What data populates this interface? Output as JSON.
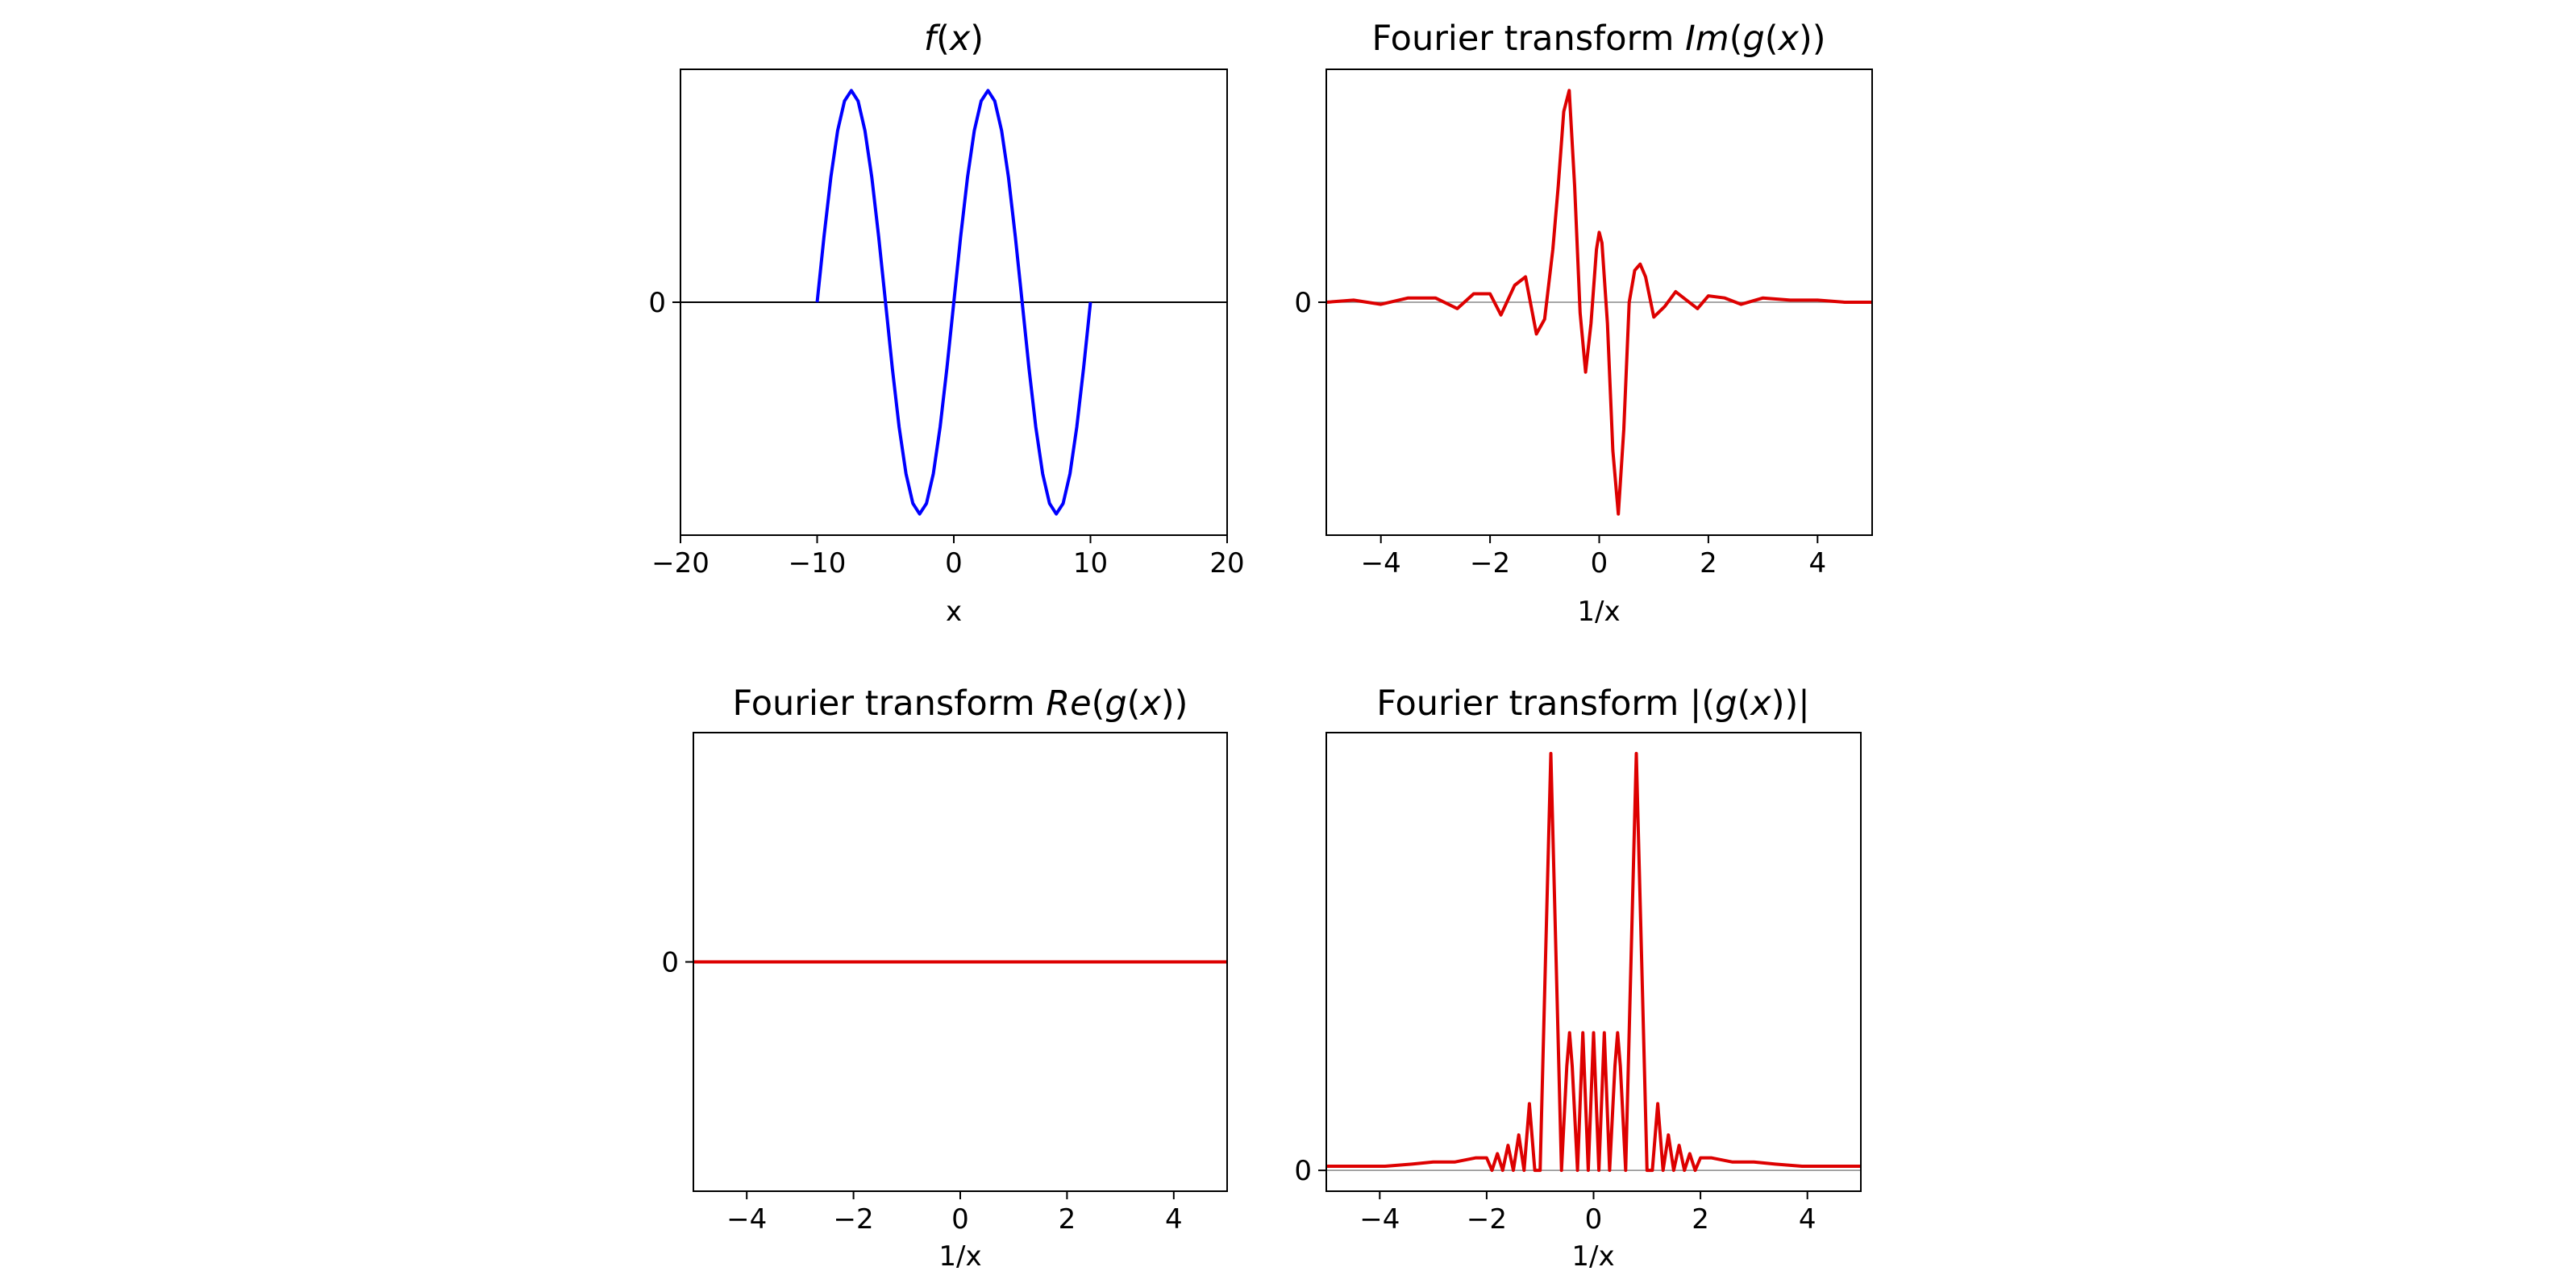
{
  "chart_data": [
    {
      "type": "line",
      "title": "f(x)",
      "xlabel": "x",
      "ylabel": "",
      "xlim": [
        -20,
        20
      ],
      "ylim": [
        -1.1,
        1.1
      ],
      "xticks": [
        -20,
        -10,
        0,
        10,
        20
      ],
      "xtick_labels": [
        "−20",
        "−10",
        "0",
        "10",
        "20"
      ],
      "yticks": [
        0
      ],
      "ytick_labels": [
        "0"
      ],
      "zero_line": true,
      "grid": false,
      "series": [
        {
          "color": "#0000ff",
          "x": [
            -10.0,
            -9.5,
            -9.0,
            -8.5,
            -8.0,
            -7.5,
            -7.0,
            -6.5,
            -6.0,
            -5.5,
            -5.0,
            -4.5,
            -4.0,
            -3.5,
            -3.0,
            -2.5,
            -2.0,
            -1.5,
            -1.0,
            -0.5,
            0.0,
            0.5,
            1.0,
            1.5,
            2.0,
            2.5,
            3.0,
            3.5,
            4.0,
            4.5,
            5.0,
            5.5,
            6.0,
            6.5,
            7.0,
            7.5,
            8.0,
            8.5,
            9.0,
            9.5,
            10.0
          ],
          "y": [
            0.0,
            0.31,
            0.59,
            0.81,
            0.95,
            1.0,
            0.95,
            0.81,
            0.59,
            0.31,
            0.0,
            -0.31,
            -0.59,
            -0.81,
            -0.95,
            -1.0,
            -0.95,
            -0.81,
            -0.59,
            -0.31,
            0.0,
            0.31,
            0.59,
            0.81,
            0.95,
            1.0,
            0.95,
            0.81,
            0.59,
            0.31,
            0.0,
            -0.31,
            -0.59,
            -0.81,
            -0.95,
            -1.0,
            -0.95,
            -0.81,
            -0.59,
            -0.31,
            0.0
          ]
        }
      ]
    },
    {
      "type": "line",
      "title": "Fourier transform Im(g(x))",
      "xlabel": "1/x",
      "ylabel": "",
      "xlim": [
        -5,
        5
      ],
      "ylim": [
        -1.1,
        1.1
      ],
      "xticks": [
        -4,
        -2,
        0,
        2,
        4
      ],
      "xtick_labels": [
        "−4",
        "−2",
        "0",
        "2",
        "4"
      ],
      "yticks": [
        0
      ],
      "ytick_labels": [
        "0"
      ],
      "zero_line": true,
      "grid": false,
      "series": [
        {
          "color": "#dd0000",
          "x": [
            -5.0,
            -4.5,
            -4.0,
            -3.5,
            -3.0,
            -2.6,
            -2.3,
            -2.0,
            -1.8,
            -1.55,
            -1.35,
            -1.15,
            -1.0,
            -0.85,
            -0.75,
            -0.65,
            -0.55,
            -0.45,
            -0.35,
            -0.25,
            -0.15,
            -0.05,
            0.0,
            0.05,
            0.15,
            0.25,
            0.35,
            0.45,
            0.55,
            0.65,
            0.75,
            0.85,
            1.0,
            1.2,
            1.4,
            1.6,
            1.8,
            2.0,
            2.3,
            2.6,
            3.0,
            3.5,
            4.0,
            4.5,
            5.0
          ],
          "y": [
            0.0,
            0.01,
            -0.01,
            0.02,
            0.02,
            -0.03,
            0.04,
            0.04,
            -0.06,
            0.08,
            0.12,
            -0.15,
            -0.08,
            0.25,
            0.55,
            0.9,
            1.0,
            0.55,
            -0.05,
            -0.33,
            -0.1,
            0.25,
            0.33,
            0.28,
            -0.1,
            -0.7,
            -1.0,
            -0.6,
            0.0,
            0.15,
            0.18,
            0.12,
            -0.07,
            -0.02,
            0.05,
            0.01,
            -0.03,
            0.03,
            0.02,
            -0.01,
            0.02,
            0.01,
            0.01,
            0.0,
            0.0
          ]
        }
      ]
    },
    {
      "type": "line",
      "title": "Fourier transform Re(g(x))",
      "xlabel": "1/x",
      "ylabel": "",
      "xlim": [
        -5,
        5
      ],
      "ylim": [
        -1.1,
        1.1
      ],
      "xticks": [
        -4,
        -2,
        0,
        2,
        4
      ],
      "xtick_labels": [
        "−4",
        "−2",
        "0",
        "2",
        "4"
      ],
      "yticks": [
        0
      ],
      "ytick_labels": [
        "0"
      ],
      "zero_line": false,
      "grid": false,
      "series": [
        {
          "color": "#dd0000",
          "x": [
            -5.0,
            5.0
          ],
          "y": [
            0.0,
            0.0
          ]
        }
      ]
    },
    {
      "type": "line",
      "title": "Fourier transform |(g(x))|",
      "xlabel": "1/x",
      "ylabel": "",
      "xlim": [
        -5,
        5
      ],
      "ylim": [
        -0.05,
        1.05
      ],
      "xticks": [
        -4,
        -2,
        0,
        2,
        4
      ],
      "xtick_labels": [
        "−4",
        "−2",
        "0",
        "2",
        "4"
      ],
      "yticks": [
        0
      ],
      "ytick_labels": [
        "0"
      ],
      "zero_line": true,
      "grid": false,
      "series": [
        {
          "color": "#dd0000",
          "x": [
            -5.0,
            -4.4,
            -3.9,
            -3.4,
            -3.0,
            -2.6,
            -2.4,
            -2.2,
            -2.0,
            -1.9,
            -1.8,
            -1.7,
            -1.6,
            -1.5,
            -1.4,
            -1.3,
            -1.2,
            -1.1,
            -1.0,
            -0.9,
            -0.8,
            -0.7,
            -0.6,
            -0.5,
            -0.45,
            -0.4,
            -0.3,
            -0.2,
            -0.1,
            0.0,
            0.1,
            0.2,
            0.3,
            0.4,
            0.45,
            0.5,
            0.6,
            0.7,
            0.8,
            0.9,
            1.0,
            1.1,
            1.2,
            1.3,
            1.4,
            1.5,
            1.6,
            1.7,
            1.8,
            1.9,
            2.0,
            2.2,
            2.4,
            2.6,
            3.0,
            3.4,
            3.9,
            4.4,
            5.0
          ],
          "y": [
            0.01,
            0.01,
            0.01,
            0.015,
            0.02,
            0.02,
            0.025,
            0.03,
            0.03,
            0.0,
            0.04,
            0.0,
            0.06,
            0.0,
            0.085,
            0.0,
            0.16,
            0.0,
            0.0,
            0.5,
            1.0,
            0.5,
            0.0,
            0.25,
            0.33,
            0.25,
            0.0,
            0.33,
            0.0,
            0.33,
            0.0,
            0.33,
            0.0,
            0.25,
            0.33,
            0.25,
            0.0,
            0.5,
            1.0,
            0.5,
            0.0,
            0.0,
            0.16,
            0.0,
            0.085,
            0.0,
            0.06,
            0.0,
            0.04,
            0.0,
            0.03,
            0.03,
            0.025,
            0.02,
            0.02,
            0.015,
            0.01,
            0.01,
            0.01
          ]
        }
      ]
    }
  ]
}
